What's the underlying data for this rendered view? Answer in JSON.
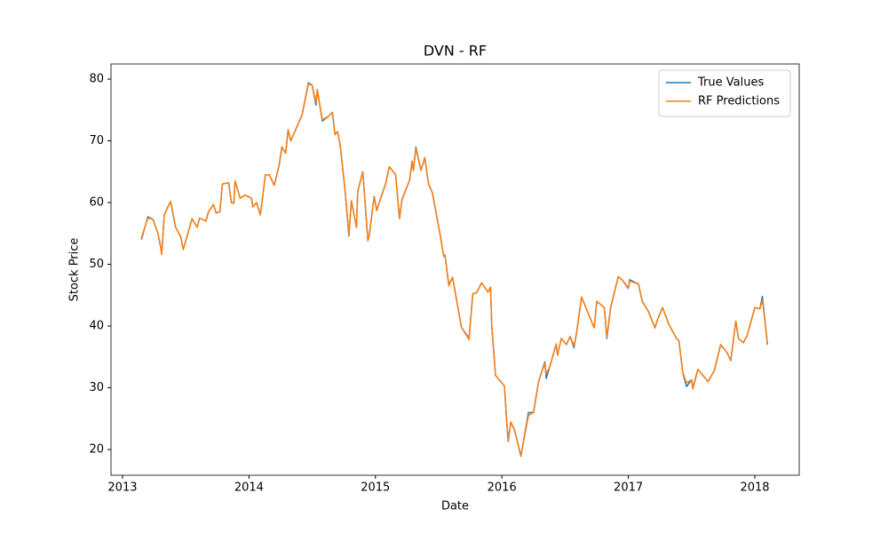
{
  "chart_data": {
    "type": "line",
    "title": "DVN - RF",
    "xlabel": "Date",
    "ylabel": "Stock Price",
    "x": [
      2013.15,
      2013.2,
      2013.24,
      2013.28,
      2013.3,
      2013.31,
      2013.33,
      2013.38,
      2013.42,
      2013.46,
      2013.48,
      2013.51,
      2013.55,
      2013.59,
      2013.61,
      2013.66,
      2013.68,
      2013.72,
      2013.74,
      2013.77,
      2013.79,
      2013.84,
      2013.86,
      2013.88,
      2013.89,
      2013.93,
      2013.97,
      2014.02,
      2014.03,
      2014.06,
      2014.09,
      2014.13,
      2014.16,
      2014.2,
      2014.24,
      2014.26,
      2014.29,
      2014.31,
      2014.33,
      2014.42,
      2014.47,
      2014.5,
      2014.53,
      2014.54,
      2014.58,
      2014.63,
      2014.66,
      2014.68,
      2014.7,
      2014.72,
      2014.76,
      2014.79,
      2014.81,
      2014.85,
      2014.86,
      2014.9,
      2014.94,
      2014.95,
      2014.99,
      2015.01,
      2015.03,
      2015.08,
      2015.11,
      2015.16,
      2015.19,
      2015.21,
      2015.27,
      2015.29,
      2015.3,
      2015.32,
      2015.36,
      2015.39,
      2015.42,
      2015.45,
      2015.51,
      2015.54,
      2015.55,
      2015.58,
      2015.61,
      2015.68,
      2015.74,
      2015.77,
      2015.8,
      2015.84,
      2015.89,
      2015.91,
      2015.92,
      2015.95,
      2016.02,
      2016.04,
      2016.05,
      2016.07,
      2016.1,
      2016.15,
      2016.21,
      2016.25,
      2016.29,
      2016.34,
      2016.35,
      2016.38,
      2016.43,
      2016.44,
      2016.47,
      2016.51,
      2016.54,
      2016.57,
      2016.59,
      2016.63,
      2016.73,
      2016.75,
      2016.81,
      2016.83,
      2016.86,
      2016.92,
      2016.95,
      2017.0,
      2017.01,
      2017.08,
      2017.11,
      2017.16,
      2017.21,
      2017.23,
      2017.27,
      2017.32,
      2017.38,
      2017.4,
      2017.43,
      2017.46,
      2017.5,
      2017.51,
      2017.55,
      2017.63,
      2017.68,
      2017.73,
      2017.78,
      2017.81,
      2017.85,
      2017.87,
      2017.91,
      2017.94,
      2018.0,
      2018.04,
      2018.06,
      2018.1
    ],
    "series": [
      {
        "name": "True Values",
        "color": "#1f77b4",
        "values": [
          54,
          57.7,
          57.3,
          55,
          53,
          51.7,
          58,
          60.2,
          56,
          54.5,
          52.4,
          54.5,
          57.4,
          56,
          57.5,
          57,
          58.5,
          59.7,
          58.3,
          58.5,
          63,
          63.2,
          60,
          59.9,
          63.5,
          60.7,
          61.2,
          60.7,
          59.3,
          60,
          58,
          64.5,
          64.5,
          62.8,
          66.2,
          69,
          68,
          71.8,
          70,
          74.2,
          79.4,
          79,
          75.8,
          78.3,
          73.2,
          74,
          74.6,
          71,
          71.5,
          69.5,
          62,
          54.6,
          60.3,
          56,
          61.8,
          65,
          54,
          54.5,
          61,
          58.7,
          60,
          63,
          65.8,
          64.5,
          57.4,
          60.5,
          63.6,
          66.7,
          65.2,
          69,
          65.2,
          67.3,
          63,
          61.6,
          55,
          51.3,
          51.5,
          46.7,
          47.9,
          39.8,
          38,
          45.2,
          45.4,
          47,
          45.5,
          46.3,
          40,
          32,
          30.3,
          24,
          21.3,
          24.4,
          23.2,
          18.9,
          26,
          26,
          31,
          34.2,
          31.5,
          33.5,
          37.1,
          35.3,
          38,
          37,
          38.3,
          36.5,
          38.8,
          44.7,
          39.7,
          44,
          43,
          38,
          43,
          48,
          47.5,
          46.1,
          47.5,
          46.8,
          44,
          42.3,
          39.7,
          41,
          43,
          40.3,
          38,
          37.6,
          32.5,
          30.2,
          31.3,
          30,
          33,
          31,
          32.8,
          37,
          35.7,
          34.4,
          40.8,
          38,
          37.3,
          38.5,
          43,
          42.8,
          44.8,
          37
        ]
      },
      {
        "name": "RF Predictions",
        "color": "#ff7f0e",
        "values": [
          54.3,
          57.5,
          57.3,
          55,
          53,
          51.6,
          58,
          60.2,
          56,
          54.5,
          52.4,
          54.5,
          57.4,
          56,
          57.5,
          57,
          58.5,
          59.7,
          58.3,
          58.5,
          63,
          63.2,
          60,
          59.9,
          63.5,
          60.7,
          61.2,
          60.7,
          59.3,
          60,
          58,
          64.5,
          64.5,
          62.8,
          66.2,
          69,
          68,
          71.8,
          70,
          74.2,
          79.2,
          79,
          76.2,
          78.3,
          73.4,
          74,
          74.6,
          71,
          71.5,
          69.5,
          62,
          54.8,
          60.3,
          56,
          61.8,
          65,
          53.8,
          54.5,
          61,
          58.7,
          60,
          63,
          65.8,
          64.5,
          57.4,
          60.5,
          63.6,
          66.7,
          65.2,
          68.8,
          65.2,
          67.3,
          63,
          61.6,
          55,
          51.3,
          51.5,
          46.5,
          47.9,
          39.8,
          37.8,
          45.2,
          45.4,
          47,
          45.5,
          46.3,
          40,
          32,
          30.3,
          24,
          21.4,
          24.5,
          23.2,
          19,
          25.5,
          26,
          31,
          34,
          32.2,
          33.5,
          37.1,
          35.3,
          38,
          37,
          38.3,
          36.8,
          38.8,
          44.7,
          39.7,
          44,
          43,
          38.2,
          43,
          48,
          47.5,
          46.2,
          47.3,
          46.8,
          44,
          42.3,
          39.7,
          41,
          43,
          40.3,
          38,
          37.6,
          32.5,
          30.8,
          31.3,
          29.8,
          33,
          31,
          32.8,
          37,
          35.7,
          34.4,
          40.8,
          38,
          37.3,
          38.5,
          43,
          42.8,
          44.2,
          37.2
        ]
      }
    ],
    "xlim": [
      2012.909,
      2018.351
    ],
    "xticks": [
      2013,
      2014,
      2015,
      2016,
      2017,
      2018
    ],
    "ylim": [
      15.83,
      82.45
    ],
    "yticks": [
      20,
      30,
      40,
      50,
      60,
      70,
      80
    ],
    "legend": "upper right"
  }
}
